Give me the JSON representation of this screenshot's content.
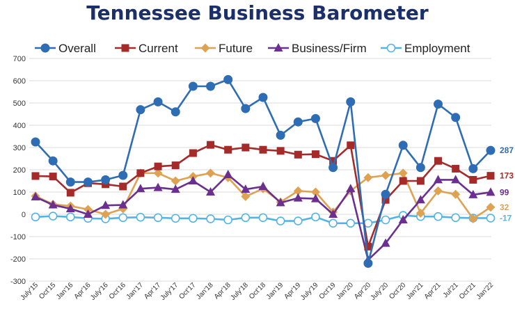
{
  "chart_data": {
    "type": "line",
    "title": "Tennessee Business Barometer",
    "xlabel": "",
    "ylabel": "",
    "ylim": [
      -300,
      700
    ],
    "yticks": [
      -300,
      -200,
      -100,
      0,
      100,
      200,
      300,
      400,
      500,
      600,
      700
    ],
    "grid": true,
    "legend_position": "top",
    "categories": [
      "July'15",
      "Oct'15",
      "Jan'16",
      "Apr'16",
      "July'16",
      "Oct'16",
      "Jan'17",
      "Apr'17",
      "July'17",
      "Oct'17",
      "Jan'18",
      "Apr'18",
      "July'18",
      "Oct'18",
      "Jan'19",
      "Apr'19",
      "July'19",
      "Oct'19",
      "Jan'20",
      "Apr'20",
      "July'20",
      "Oct'20",
      "Jan'21",
      "Apr'21",
      "Jul'21",
      "Oct'21",
      "Jan'22"
    ],
    "series": [
      {
        "name": "Overall",
        "color": "#2e6db4",
        "marker": "circle",
        "values": [
          325,
          240,
          145,
          145,
          155,
          175,
          470,
          505,
          460,
          575,
          575,
          605,
          475,
          525,
          355,
          415,
          430,
          210,
          505,
          -220,
          90,
          310,
          210,
          495,
          435,
          205,
          287
        ]
      },
      {
        "name": "Current",
        "color": "#a52a2a",
        "marker": "square",
        "values": [
          172,
          170,
          97,
          140,
          135,
          125,
          185,
          215,
          220,
          275,
          312,
          290,
          300,
          290,
          285,
          268,
          270,
          240,
          310,
          -145,
          65,
          150,
          150,
          240,
          205,
          155,
          173
        ]
      },
      {
        "name": "Future",
        "color": "#dea253",
        "marker": "diamond",
        "values": [
          82,
          45,
          37,
          22,
          0,
          25,
          185,
          185,
          150,
          170,
          185,
          165,
          80,
          115,
          55,
          105,
          100,
          10,
          105,
          165,
          175,
          185,
          5,
          105,
          90,
          -20,
          32
        ]
      },
      {
        "name": "Business/Firm",
        "color": "#6a2f8f",
        "marker": "triangle",
        "values": [
          78,
          42,
          25,
          0,
          40,
          42,
          115,
          120,
          112,
          150,
          100,
          178,
          112,
          125,
          52,
          73,
          70,
          0,
          115,
          -205,
          -130,
          -25,
          65,
          155,
          155,
          88,
          99
        ]
      },
      {
        "name": "Employment",
        "color": "#53b4e3",
        "marker": "open-circle",
        "values": [
          -12,
          -8,
          -12,
          -18,
          -20,
          -15,
          -13,
          -15,
          -18,
          -18,
          -20,
          -25,
          -15,
          -15,
          -30,
          -30,
          -12,
          -40,
          -40,
          -40,
          -25,
          -5,
          -10,
          -10,
          -15,
          -17,
          -17
        ]
      }
    ],
    "end_labels": [
      "287",
      "173",
      "32",
      "99",
      "-17"
    ],
    "end_label_colors": [
      "#2e6db4",
      "#a52a2a",
      "#dea253",
      "#6a2f8f",
      "#53b4e3"
    ]
  }
}
